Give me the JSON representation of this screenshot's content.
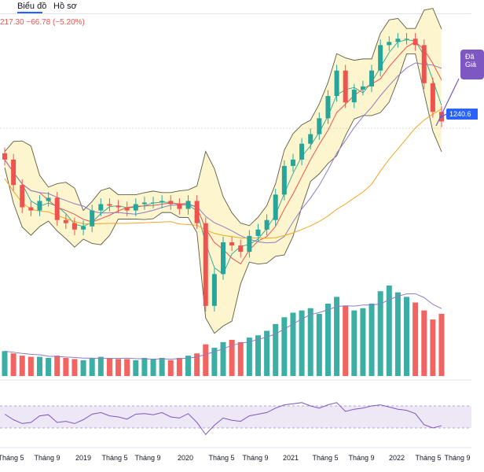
{
  "toolbar": {
    "tabs": [
      {
        "label": "Biểu đồ"
      },
      {
        "label": "Hồ sơ"
      }
    ]
  },
  "price_readout": "217.30  −66.78 (−5.20%)",
  "callout_text": "Đã\nGiả",
  "last_price_label": "1240.6",
  "colors": {
    "up": "#26a69a",
    "down": "#ef5350",
    "bollinger_fill": "#fdf3c4",
    "ma_short": "#ef5350",
    "ma_long_orange": "#f5a623",
    "ma_mid_purple": "#8e7cc3",
    "rsi_band": "#ede7f6",
    "rsi_line": "#7e57c2",
    "accent": "#2962ff"
  },
  "chart_data": [
    {
      "type": "candlestick",
      "title": "",
      "xlabel": "",
      "ylabel": "",
      "x_ticks": [
        "Tháng 5",
        "Tháng 9",
        "2019",
        "Tháng 5",
        "Tháng 9",
        "2020",
        "Tháng 5",
        "Tháng 9",
        "2021",
        "Tháng 5",
        "Tháng 9",
        "2022",
        "Tháng 5",
        "Tháng 9"
      ],
      "indicators": [
        "Bollinger Bands",
        "Moving Average (short)",
        "Moving Average (mid)",
        "Moving Average (long)"
      ],
      "series": [
        {
          "name": "close",
          "x": [
            "2018-04",
            "2018-05",
            "2018-06",
            "2018-07",
            "2018-08",
            "2018-09",
            "2018-10",
            "2018-11",
            "2018-12",
            "2019-01",
            "2019-02",
            "2019-03",
            "2019-04",
            "2019-05",
            "2019-06",
            "2019-07",
            "2019-08",
            "2019-09",
            "2019-10",
            "2019-11",
            "2019-12",
            "2020-01",
            "2020-02",
            "2020-03",
            "2020-04",
            "2020-05",
            "2020-06",
            "2020-07",
            "2020-08",
            "2020-09",
            "2020-10",
            "2020-11",
            "2020-12",
            "2021-01",
            "2021-02",
            "2021-03",
            "2021-04",
            "2021-05",
            "2021-06",
            "2021-07",
            "2021-08",
            "2021-09",
            "2021-10",
            "2021-11",
            "2021-12",
            "2022-01",
            "2022-02",
            "2022-03",
            "2022-04",
            "2022-05",
            "2022-06"
          ],
          "values": [
            1120,
            1040,
            970,
            960,
            990,
            1000,
            930,
            920,
            900,
            910,
            960,
            980,
            975,
            970,
            960,
            980,
            985,
            985,
            990,
            980,
            965,
            990,
            920,
            660,
            760,
            860,
            850,
            830,
            880,
            900,
            930,
            1010,
            1100,
            1120,
            1170,
            1200,
            1250,
            1320,
            1400,
            1300,
            1340,
            1350,
            1400,
            1480,
            1490,
            1500,
            1500,
            1480,
            1360,
            1270,
            1240
          ]
        }
      ]
    },
    {
      "type": "bar",
      "name": "volume",
      "title": "",
      "categories": [
        "2018-04",
        "2018-05",
        "2018-06",
        "2018-07",
        "2018-08",
        "2018-09",
        "2018-10",
        "2018-11",
        "2018-12",
        "2019-01",
        "2019-02",
        "2019-03",
        "2019-04",
        "2019-05",
        "2019-06",
        "2019-07",
        "2019-08",
        "2019-09",
        "2019-10",
        "2019-11",
        "2019-12",
        "2020-01",
        "2020-02",
        "2020-03",
        "2020-04",
        "2020-05",
        "2020-06",
        "2020-07",
        "2020-08",
        "2020-09",
        "2020-10",
        "2020-11",
        "2020-12",
        "2021-01",
        "2021-02",
        "2021-03",
        "2021-04",
        "2021-05",
        "2021-06",
        "2021-07",
        "2021-08",
        "2021-09",
        "2021-10",
        "2021-11",
        "2021-12",
        "2022-01",
        "2022-02",
        "2022-03",
        "2022-04",
        "2022-05",
        "2022-06"
      ],
      "values": [
        22,
        20,
        18,
        17,
        17,
        16,
        18,
        16,
        15,
        14,
        16,
        17,
        16,
        15,
        15,
        14,
        16,
        15,
        16,
        14,
        16,
        18,
        20,
        28,
        25,
        30,
        32,
        30,
        34,
        36,
        40,
        46,
        52,
        56,
        58,
        60,
        55,
        64,
        70,
        62,
        58,
        60,
        64,
        75,
        80,
        74,
        70,
        65,
        58,
        50,
        55
      ]
    },
    {
      "type": "line",
      "name": "RSI",
      "title": "",
      "ylim": [
        0,
        100
      ],
      "band": [
        30,
        70
      ],
      "x": [
        "2018-04",
        "2018-05",
        "2018-06",
        "2018-07",
        "2018-08",
        "2018-09",
        "2018-10",
        "2018-11",
        "2018-12",
        "2019-01",
        "2019-02",
        "2019-03",
        "2019-04",
        "2019-05",
        "2019-06",
        "2019-07",
        "2019-08",
        "2019-09",
        "2019-10",
        "2019-11",
        "2019-12",
        "2020-01",
        "2020-02",
        "2020-03",
        "2020-04",
        "2020-05",
        "2020-06",
        "2020-07",
        "2020-08",
        "2020-09",
        "2020-10",
        "2020-11",
        "2020-12",
        "2021-01",
        "2021-02",
        "2021-03",
        "2021-04",
        "2021-05",
        "2021-06",
        "2021-07",
        "2021-08",
        "2021-09",
        "2021-10",
        "2021-11",
        "2021-12",
        "2022-01",
        "2022-02",
        "2022-03",
        "2022-04",
        "2022-05",
        "2022-06"
      ],
      "values": [
        55,
        45,
        38,
        40,
        52,
        54,
        40,
        42,
        38,
        45,
        55,
        58,
        52,
        50,
        46,
        55,
        56,
        54,
        58,
        50,
        48,
        56,
        40,
        18,
        35,
        48,
        44,
        42,
        52,
        55,
        58,
        66,
        72,
        74,
        76,
        70,
        66,
        72,
        76,
        60,
        64,
        66,
        70,
        72,
        68,
        64,
        62,
        56,
        36,
        30,
        34
      ]
    }
  ]
}
